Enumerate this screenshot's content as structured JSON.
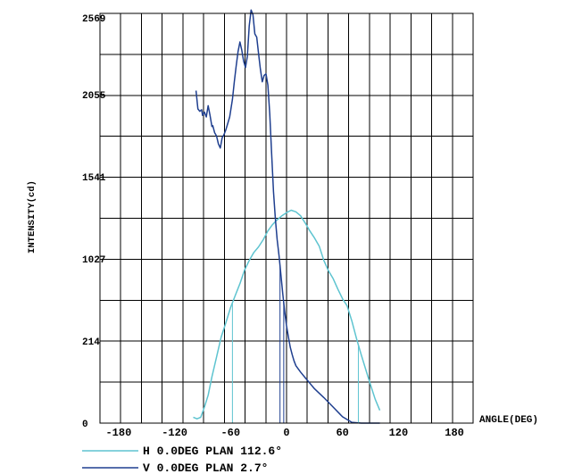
{
  "chart_data": {
    "type": "line",
    "xlabel": "ANGLE(DEG)",
    "ylabel": "INTENSITY(cd)",
    "xlim": [
      -200,
      200
    ],
    "ylim": [
      0,
      2569
    ],
    "x_ticks": [
      -180,
      -120,
      -60,
      0,
      60,
      120,
      180
    ],
    "x_tick_labels": [
      "-180",
      "-120",
      "-60",
      "0",
      "60",
      "120",
      "180"
    ],
    "y_ticks": [
      0,
      214,
      1027,
      1541,
      2055,
      2569
    ],
    "y_tick_labels": [
      "0",
      "214",
      "1027",
      "1541",
      "2055",
      "2569"
    ],
    "grid": true,
    "legend_position": "bottom-left",
    "colors": {
      "H": "#5ec4d0",
      "V": "#1f3f8f"
    },
    "series": [
      {
        "name": "H 0.0DEG PLAN 112.6°",
        "color": "#5ec4d0",
        "x": [
          -100,
          -96,
          -92,
          -88,
          -84,
          -80,
          -75,
          -70,
          -65,
          -60,
          -55,
          -50,
          -45,
          -40,
          -35,
          -30,
          -25,
          -20,
          -15,
          -10,
          -5,
          0,
          5,
          10,
          15,
          20,
          25,
          30,
          35,
          40,
          45,
          50,
          55,
          60,
          65,
          70,
          75,
          80,
          85,
          90,
          95,
          100
        ],
        "y": [
          37,
          27,
          37,
          100,
          175,
          290,
          415,
          540,
          630,
          725,
          800,
          875,
          960,
          1020,
          1070,
          1105,
          1150,
          1205,
          1245,
          1275,
          1300,
          1320,
          1335,
          1325,
          1300,
          1255,
          1205,
          1160,
          1110,
          1020,
          955,
          905,
          840,
          780,
          735,
          640,
          530,
          430,
          335,
          240,
          150,
          80
        ]
      },
      {
        "name": "V 0.0DEG PLAN 2.7°",
        "color": "#1f3f8f",
        "x": [
          -97,
          -95,
          -93,
          -91,
          -90,
          -88,
          -86,
          -84,
          -82,
          -80,
          -79,
          -77,
          -75,
          -73,
          -71,
          -69,
          -67,
          -65,
          -63,
          -61,
          -58,
          -56,
          -54,
          -52,
          -50,
          -48,
          -46,
          -44,
          -42,
          -40,
          -38,
          -36,
          -34,
          -32,
          -30,
          -28,
          -26,
          -24,
          -22,
          -20,
          -18,
          -16,
          -14,
          -12,
          -10,
          -8,
          -6,
          -4,
          -2,
          0,
          2,
          4,
          6,
          8,
          10,
          15,
          20,
          25,
          30,
          40,
          50,
          60,
          70,
          80,
          90,
          100
        ],
        "y": [
          2085,
          1970,
          1955,
          1965,
          1930,
          1950,
          1920,
          1990,
          1930,
          1860,
          1865,
          1820,
          1800,
          1750,
          1725,
          1790,
          1810,
          1840,
          1880,
          1920,
          2030,
          2140,
          2240,
          2330,
          2390,
          2340,
          2270,
          2230,
          2300,
          2490,
          2590,
          2560,
          2440,
          2420,
          2320,
          2220,
          2140,
          2180,
          2190,
          2120,
          1940,
          1690,
          1450,
          1280,
          1150,
          1050,
          930,
          810,
          700,
          610,
          540,
          475,
          430,
          390,
          360,
          320,
          285,
          250,
          215,
          160,
          100,
          40,
          5,
          0,
          0,
          0
        ]
      }
    ]
  }
}
